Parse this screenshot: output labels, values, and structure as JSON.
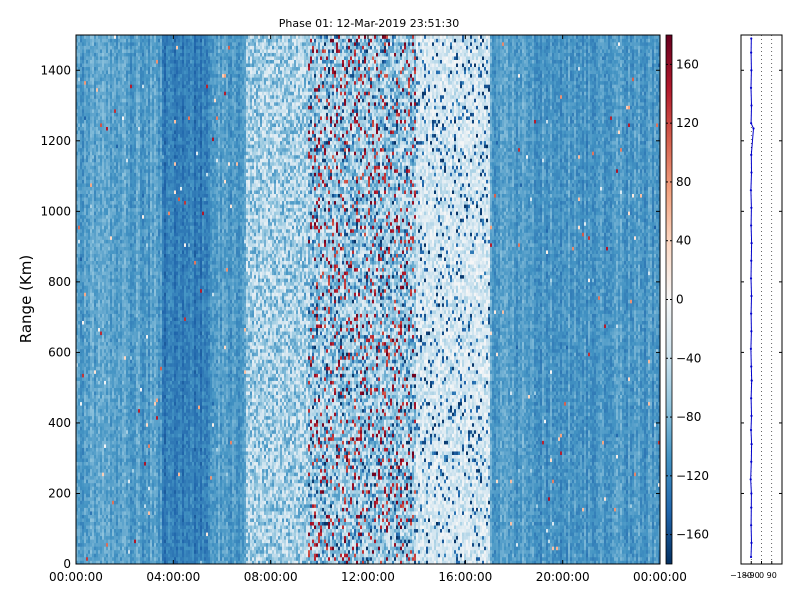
{
  "chart_data": [
    {
      "type": "heatmap",
      "title": "Phase 01: 12-Mar-2019 23:51:30",
      "xlabel": "",
      "ylabel": "Range (Km)",
      "x_ticks": [
        "00:00:00",
        "04:00:00",
        "08:00:00",
        "12:00:00",
        "16:00:00",
        "20:00:00",
        "00:00:00"
      ],
      "x_range_hours": [
        0,
        24
      ],
      "y_ticks": [
        0,
        200,
        400,
        600,
        800,
        1000,
        1200,
        1400
      ],
      "ylim": [
        0,
        1500
      ],
      "colorbar": {
        "ticks": [
          -160,
          -120,
          -80,
          -40,
          0,
          40,
          80,
          120,
          160
        ],
        "range": [
          -180,
          180
        ],
        "colormap": "RdBu_r"
      },
      "pattern_description_hours": {
        "cool_background_value": -100,
        "noisy_band": [
          7,
          17
        ],
        "strongly_scattered_band": [
          9.5,
          14
        ],
        "pale_band": [
          14,
          17
        ]
      }
    },
    {
      "type": "line",
      "title": "",
      "xlabel": "",
      "ylabel": "",
      "x_ticks": [
        "−180",
        "−90",
        "0",
        "90"
      ],
      "xlim": [
        -180,
        180
      ],
      "ylim": [
        0,
        1500
      ],
      "grid": "dotted vertical",
      "series": [
        {
          "profile": [
            [
              -92,
              20
            ],
            [
              -88,
              60
            ],
            [
              -91,
              110
            ],
            [
              -90,
              160
            ],
            [
              -89,
              200
            ],
            [
              -95,
              240
            ],
            [
              -90,
              290
            ],
            [
              -87,
              340
            ],
            [
              -92,
              380
            ],
            [
              -88,
              420
            ],
            [
              -91,
              470
            ],
            [
              -86,
              520
            ],
            [
              -90,
              560
            ],
            [
              -93,
              610
            ],
            [
              -89,
              660
            ],
            [
              -91,
              710
            ],
            [
              -88,
              760
            ],
            [
              -92,
              810
            ],
            [
              -90,
              860
            ],
            [
              -87,
              910
            ],
            [
              -91,
              960
            ],
            [
              -89,
              1010
            ],
            [
              -93,
              1060
            ],
            [
              -88,
              1110
            ],
            [
              -90,
              1160
            ],
            [
              -70,
              1235
            ],
            [
              -91,
              1250
            ],
            [
              -88,
              1300
            ],
            [
              -92,
              1350
            ],
            [
              -89,
              1400
            ],
            [
              -91,
              1450
            ],
            [
              -90,
              1490
            ]
          ]
        }
      ]
    }
  ]
}
